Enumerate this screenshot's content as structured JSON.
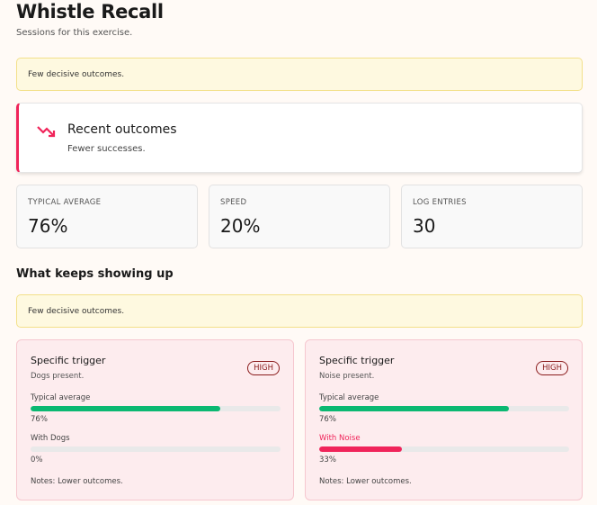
{
  "header": {
    "title": "Whistle Recall",
    "subtitle": "Sessions for this exercise."
  },
  "banner_top": "Few decisive outcomes.",
  "recent": {
    "icon": "trending-down-icon",
    "title": "Recent outcomes",
    "description": "Fewer successes.",
    "accent": "#f0245a"
  },
  "stats": [
    {
      "label": "TYPICAL AVERAGE",
      "value": "76%"
    },
    {
      "label": "SPEED",
      "value": "20%"
    },
    {
      "label": "LOG ENTRIES",
      "value": "30"
    }
  ],
  "section": {
    "title": "What keeps showing up",
    "banner": "Few decisive outcomes."
  },
  "cards": [
    {
      "title": "Specific trigger",
      "description": "Dogs present.",
      "badge": "HIGH",
      "bars": [
        {
          "label": "Typical average",
          "value": "76%",
          "fraction": 0.76,
          "color": "#0bb872"
        },
        {
          "label": "With Dogs",
          "value": "0%",
          "fraction": 0,
          "color": "#f0245a"
        }
      ],
      "notes": "Notes: Lower outcomes."
    },
    {
      "title": "Specific trigger",
      "description": "Noise present.",
      "badge": "HIGH",
      "bars": [
        {
          "label": "Typical average",
          "value": "76%",
          "fraction": 0.76,
          "color": "#0bb872"
        },
        {
          "label": "With Noise",
          "value": "33%",
          "fraction": 0.33,
          "color": "#f0245a"
        }
      ],
      "notes": "Notes: Lower outcomes."
    }
  ]
}
